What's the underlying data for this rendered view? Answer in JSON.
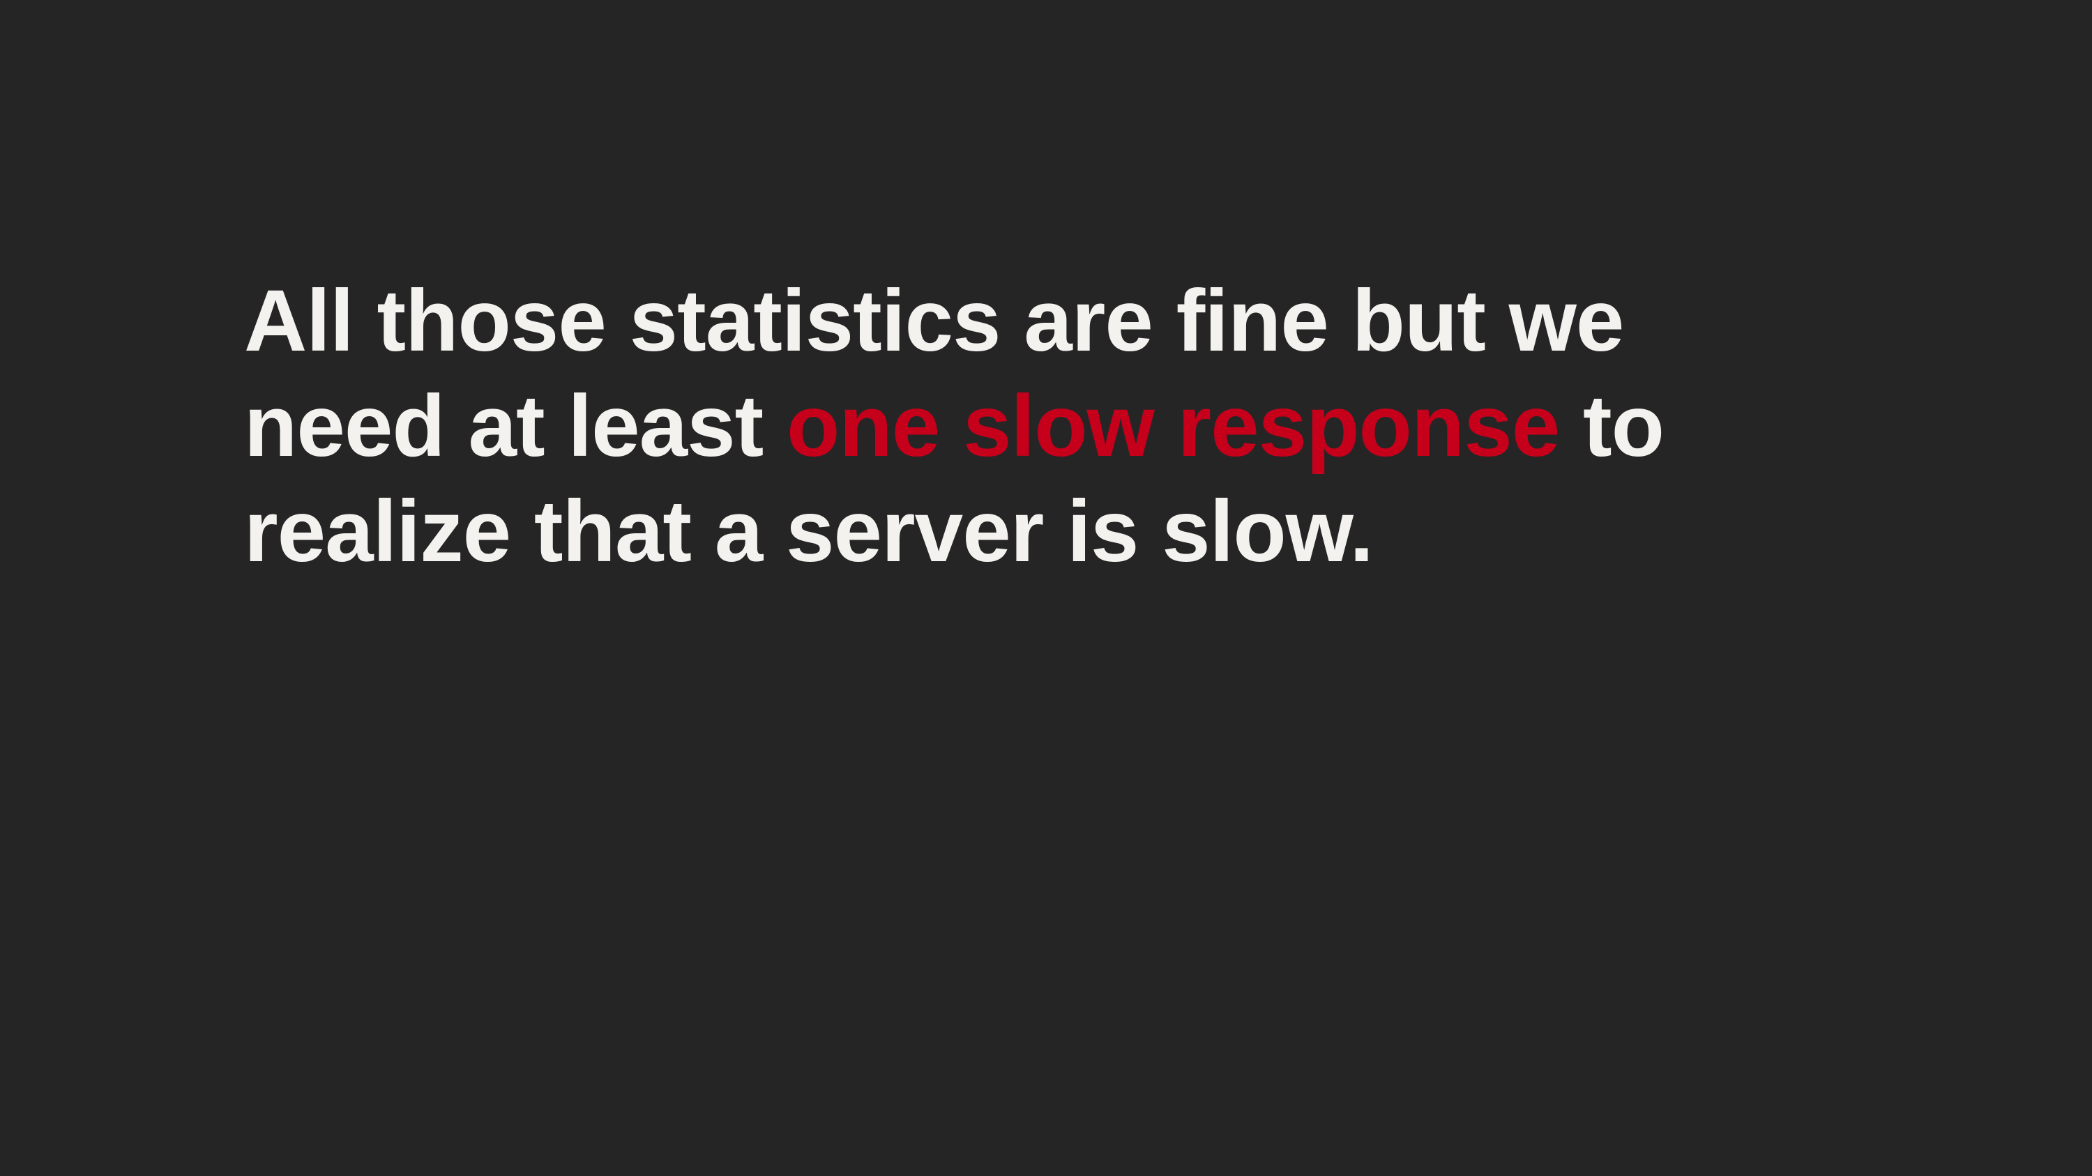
{
  "slide": {
    "line_1": "All those statistics are fine but we",
    "line_2_before": "need at least ",
    "line_2_highlight": "one slow response",
    "line_2_after": " to",
    "line_3": "realize that a server is slow."
  },
  "colors": {
    "background": "#262526",
    "text": "#f4f2ee",
    "highlight": "#c6001b"
  }
}
